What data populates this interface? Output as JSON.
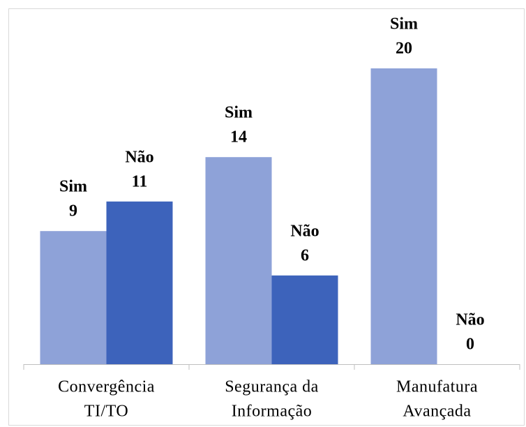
{
  "chart_data": {
    "type": "bar",
    "categories": [
      [
        "Convergência",
        "TI/TO"
      ],
      [
        "Segurança da",
        "Informação"
      ],
      [
        "Manufatura",
        "Avançada"
      ]
    ],
    "series": [
      {
        "name": "Sim",
        "color": "#8ea2d8",
        "values": [
          9,
          14,
          20
        ]
      },
      {
        "name": "Não",
        "color": "#3d63bb",
        "values": [
          11,
          6,
          0
        ]
      }
    ]
  }
}
